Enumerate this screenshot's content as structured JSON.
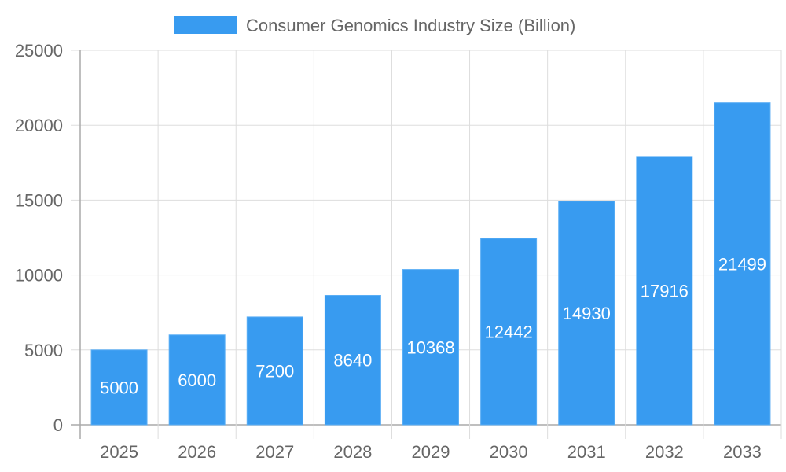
{
  "chart_data": {
    "type": "bar",
    "title": "",
    "categories": [
      "2025",
      "2026",
      "2027",
      "2028",
      "2029",
      "2030",
      "2031",
      "2032",
      "2033"
    ],
    "series": [
      {
        "name": "Consumer Genomics Industry Size (Billion)",
        "values": [
          5000,
          6000,
          7200,
          8640,
          10368,
          12442,
          14930,
          17916,
          21499
        ]
      }
    ],
    "ylim": [
      0,
      25000
    ],
    "yticks": [
      0,
      5000,
      10000,
      15000,
      20000,
      25000
    ],
    "grid": true,
    "legend": "top",
    "data_labels": "inside-bar-center",
    "colors": {
      "bar": "#389BF0",
      "bar_border": "#5AAEF5",
      "grid": "#dddddd",
      "axis": "#aaaaaa",
      "text": "#666666",
      "label": "#ffffff"
    }
  }
}
